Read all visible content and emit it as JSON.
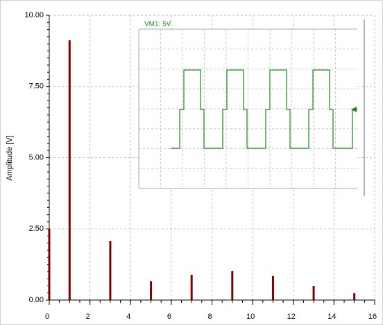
{
  "chart_data": {
    "type": "bar",
    "ylabel": "Amplitude [V]",
    "annotation": "VM1: 5V",
    "x": [
      0,
      1,
      3,
      5,
      7,
      9,
      11,
      13,
      15
    ],
    "values": [
      2.5,
      9.12,
      2.07,
      0.66,
      0.88,
      1.02,
      0.85,
      0.49,
      0.24
    ],
    "color": "#800000",
    "xlim": [
      0,
      16
    ],
    "xticks": [
      0,
      2,
      4,
      6,
      8,
      10,
      12,
      14,
      16
    ],
    "ylim": [
      0,
      10
    ],
    "yticks": [
      {
        "value": 0,
        "label": "0.00"
      },
      {
        "value": 2.5,
        "label": "2.50"
      },
      {
        "value": 5,
        "label": "5.00"
      },
      {
        "value": 7.5,
        "label": "7.50"
      },
      {
        "value": 10,
        "label": "10.00"
      }
    ],
    "grid": true
  }
}
